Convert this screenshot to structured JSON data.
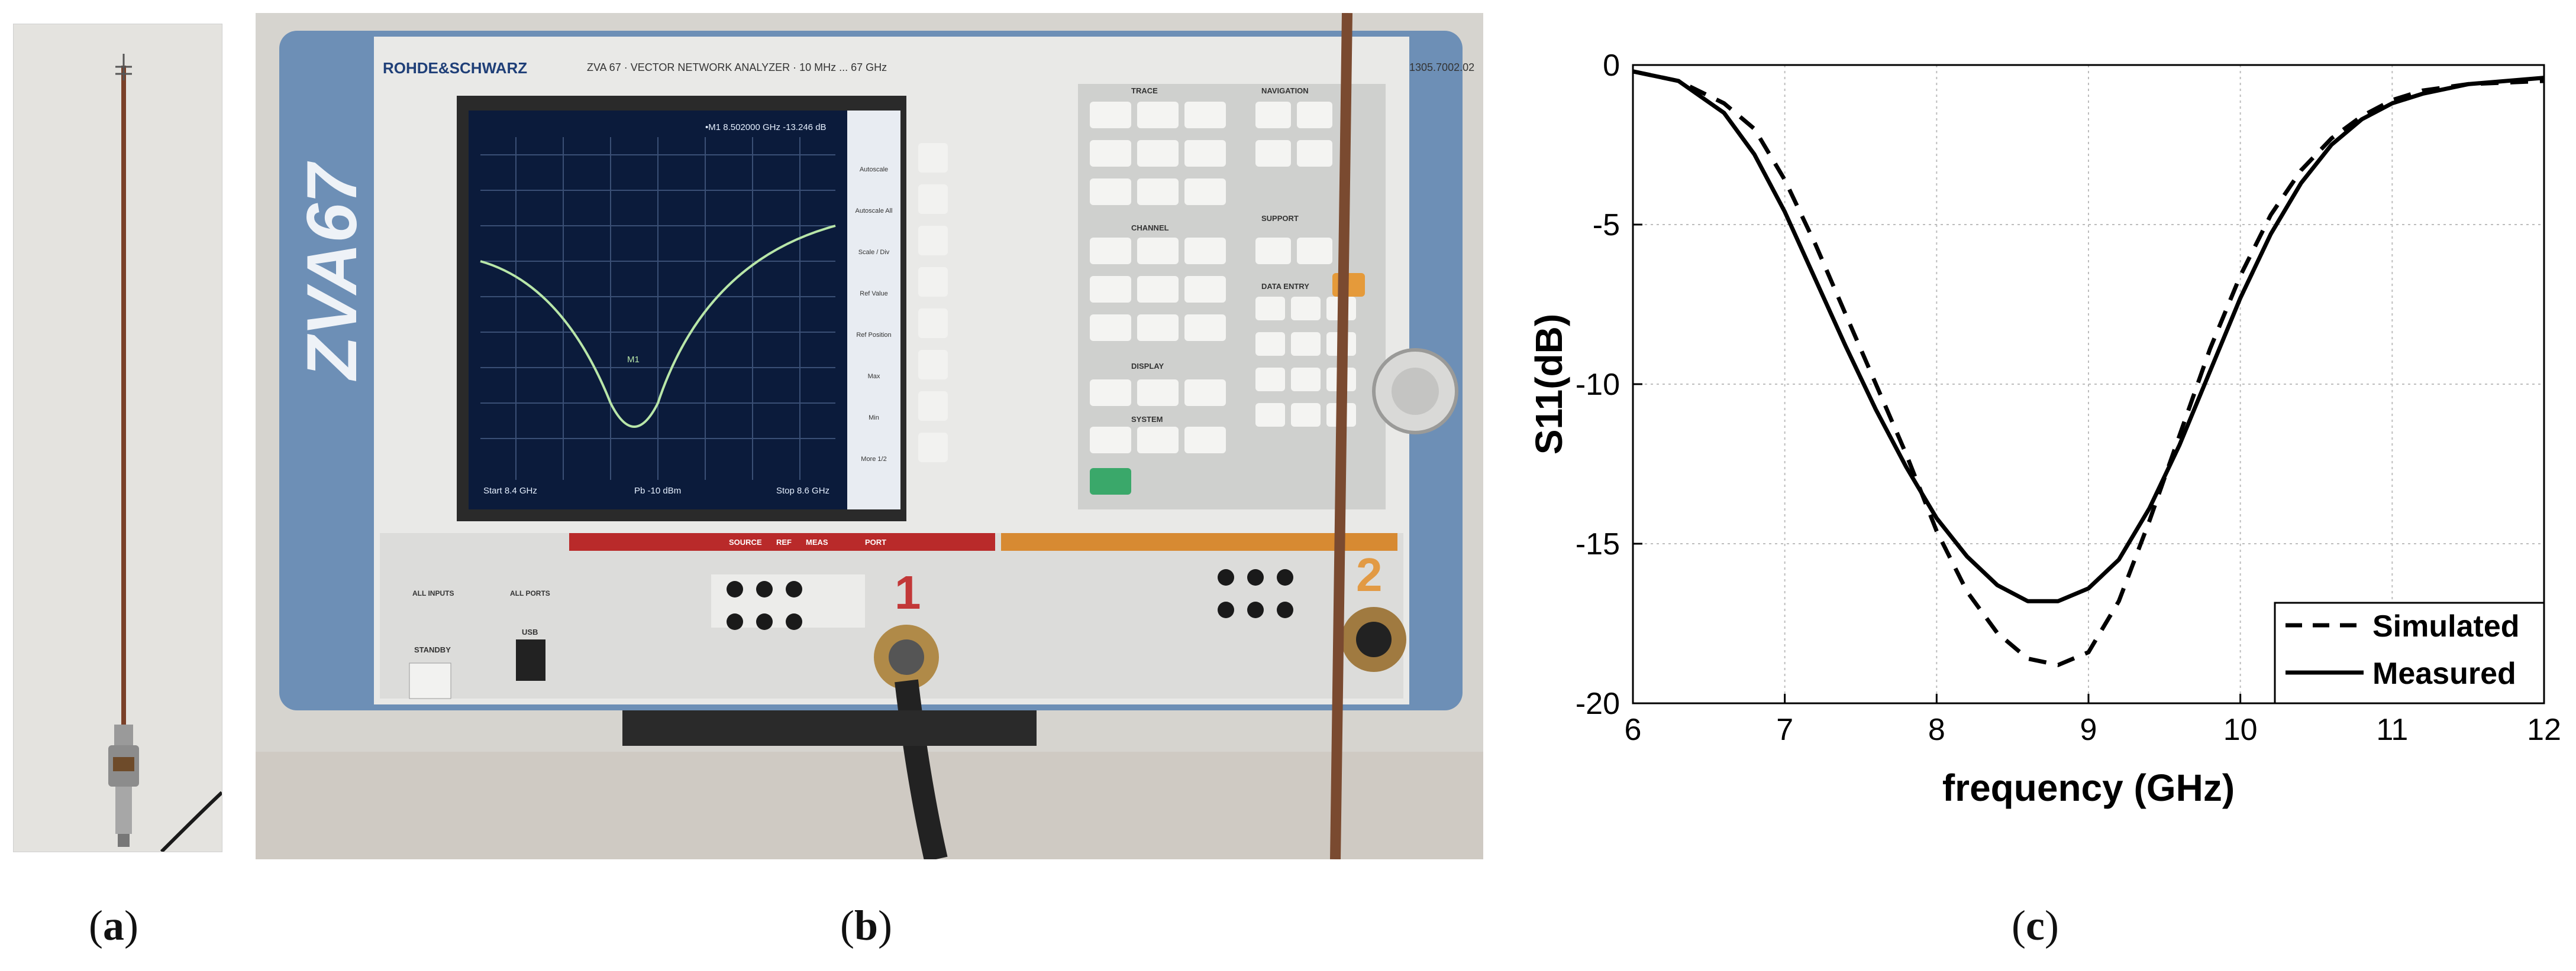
{
  "labels": {
    "a": "a",
    "b": "b",
    "c": "c"
  },
  "photo_b": {
    "brand": "ROHDE&SCHWARZ",
    "model_line": "ZVA 67 · VECTOR NETWORK ANALYZER · 10 MHz ... 67 GHz",
    "model_big": "ZVA67",
    "serial": "1305.7002.02",
    "screen": {
      "marker_readout": "•M1  8.502000 GHz  -13.246 dB",
      "marker_label": "M1",
      "start": "Start  8.4 GHz",
      "power": "Pb  -10 dBm",
      "stop": "Stop  8.6 GHz"
    },
    "softkeys": [
      "Autoscale",
      "Autoscale All",
      "Scale / Div",
      "Ref Value",
      "Ref Position",
      "Max",
      "Min",
      "More 1/2"
    ],
    "section_titles": [
      "TRACE",
      "NAVIGATION",
      "CHANNEL",
      "SUPPORT",
      "DISPLAY",
      "DATA ENTRY",
      "SYSTEM"
    ],
    "ports": {
      "p1": "1",
      "p2": "2",
      "port_header": "PORT",
      "source": "SOURCE",
      "ref": "REF",
      "meas": "MEAS"
    },
    "standby": "STANDBY",
    "usb": "USB",
    "all_inputs": "ALL INPUTS",
    "all_ports": "ALL PORTS"
  },
  "chart_data": {
    "type": "line",
    "xlabel": "frequency (GHz)",
    "ylabel": "S11(dB)",
    "xlim": [
      6,
      12
    ],
    "ylim": [
      -20,
      0
    ],
    "xticks": [
      6,
      7,
      8,
      9,
      10,
      11,
      12
    ],
    "yticks": [
      0,
      -5,
      -10,
      -15,
      -20
    ],
    "grid": true,
    "legend_position": "bottom-right",
    "series": [
      {
        "name": "Simulated",
        "style": "dashed",
        "x": [
          6.0,
          6.3,
          6.6,
          6.8,
          7.0,
          7.2,
          7.4,
          7.6,
          7.8,
          8.0,
          8.2,
          8.4,
          8.6,
          8.8,
          9.0,
          9.2,
          9.4,
          9.6,
          9.8,
          10.0,
          10.2,
          10.4,
          10.6,
          10.8,
          11.0,
          11.2,
          11.5,
          12.0
        ],
        "y": [
          -0.2,
          -0.5,
          -1.2,
          -2.0,
          -3.6,
          -5.6,
          -7.8,
          -10.0,
          -12.2,
          -14.6,
          -16.5,
          -17.8,
          -18.6,
          -18.8,
          -18.4,
          -16.8,
          -14.3,
          -11.6,
          -8.9,
          -6.6,
          -4.7,
          -3.3,
          -2.3,
          -1.6,
          -1.1,
          -0.8,
          -0.6,
          -0.5
        ]
      },
      {
        "name": "Measured",
        "style": "solid",
        "x": [
          6.0,
          6.3,
          6.6,
          6.8,
          7.0,
          7.2,
          7.4,
          7.6,
          7.8,
          8.0,
          8.2,
          8.4,
          8.6,
          8.8,
          9.0,
          9.2,
          9.4,
          9.6,
          9.8,
          10.0,
          10.2,
          10.4,
          10.6,
          10.8,
          11.0,
          11.2,
          11.5,
          12.0
        ],
        "y": [
          -0.2,
          -0.5,
          -1.5,
          -2.8,
          -4.6,
          -6.7,
          -8.8,
          -10.8,
          -12.6,
          -14.2,
          -15.4,
          -16.3,
          -16.8,
          -16.8,
          -16.4,
          -15.5,
          -13.9,
          -11.9,
          -9.6,
          -7.3,
          -5.3,
          -3.7,
          -2.5,
          -1.7,
          -1.2,
          -0.9,
          -0.6,
          -0.4
        ]
      }
    ]
  }
}
